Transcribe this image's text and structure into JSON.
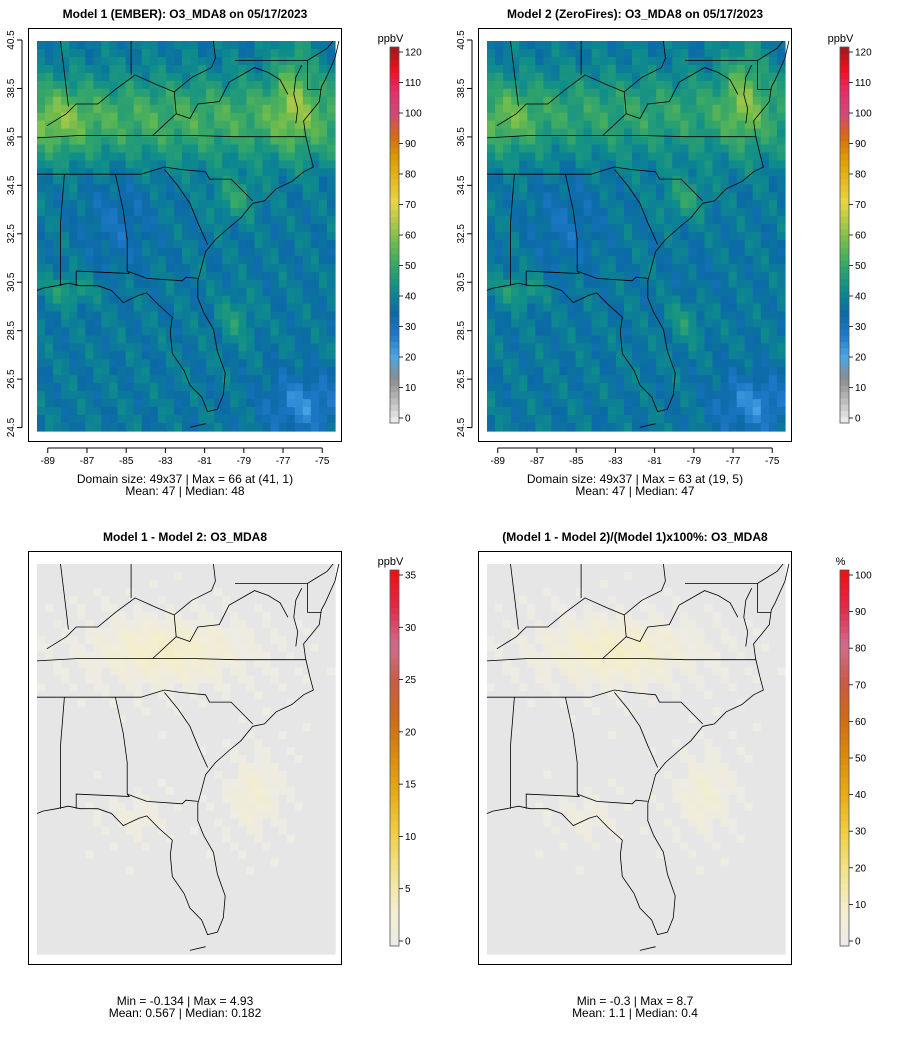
{
  "panels": [
    {
      "id": "p1",
      "title": "Model 1 (EMBER): O3_MDA8 on 05/17/2023",
      "stats_line1": "Domain size: 49x37 | Max = 66 at (41, 1)",
      "stats_line2": "Mean: 47 |  Median: 48",
      "x_ticks": [
        "-89",
        "-87",
        "-85",
        "-83",
        "-81",
        "-79",
        "-77",
        "-75"
      ],
      "y_ticks": [
        "24.5",
        "26.5",
        "28.5",
        "30.5",
        "32.5",
        "34.5",
        "36.5",
        "38.5",
        "40.5"
      ],
      "colorbar_unit": "ppbV",
      "colorbar_labels": [
        "0",
        "10",
        "20",
        "30",
        "40",
        "50",
        "60",
        "70",
        "80",
        "90",
        "100",
        "110",
        "120"
      ],
      "field": "ozone"
    },
    {
      "id": "p2",
      "title": "Model 2 (ZeroFires): O3_MDA8 on 05/17/2023",
      "stats_line1": "Domain size: 49x37 | Max = 63 at (19, 5)",
      "stats_line2": "Mean: 47 |  Median: 47",
      "x_ticks": [
        "-89",
        "-87",
        "-85",
        "-83",
        "-81",
        "-79",
        "-77",
        "-75"
      ],
      "y_ticks": [
        "24.5",
        "26.5",
        "28.5",
        "30.5",
        "32.5",
        "34.5",
        "36.5",
        "38.5",
        "40.5"
      ],
      "colorbar_unit": "ppbV",
      "colorbar_labels": [
        "0",
        "10",
        "20",
        "30",
        "40",
        "50",
        "60",
        "70",
        "80",
        "90",
        "100",
        "110",
        "120"
      ],
      "field": "ozone"
    },
    {
      "id": "p3",
      "title": "Model 1 - Model 2: O3_MDA8",
      "stats_line1": "Min = -0.134 | Max = 4.93",
      "stats_line2": "Mean: 0.567 |  Median: 0.182",
      "colorbar_unit": "ppbV",
      "colorbar_labels": [
        "0",
        "5",
        "10",
        "15",
        "20",
        "25",
        "30",
        "35"
      ],
      "field": "diff"
    },
    {
      "id": "p4",
      "title": "(Model 1 - Model 2)/(Model 1)x100%: O3_MDA8",
      "stats_line1": "Min = -0.3 | Max = 8.7",
      "stats_line2": "Mean: 1.1 |  Median: 0.4",
      "colorbar_unit": "%",
      "colorbar_labels": [
        "0",
        "10",
        "20",
        "30",
        "40",
        "50",
        "60",
        "70",
        "80",
        "90",
        "100"
      ],
      "field": "diff"
    }
  ],
  "colors": {
    "ozone_scale": [
      "#f2f2f2",
      "#bdbdbd",
      "#8c8c8c",
      "#4aa7e6",
      "#1f78c8",
      "#0b6aa6",
      "#0e8c8c",
      "#2ea36e",
      "#63b94f",
      "#a7c849",
      "#e8d642",
      "#e6b820",
      "#dc9b00",
      "#d66a12",
      "#d1487a",
      "#e52e6a",
      "#f00f1e",
      "#9e1a1a"
    ],
    "diff_scale": [
      "#ebebeb",
      "#f4eecb",
      "#f3e38c",
      "#f1cf44",
      "#e9ad18",
      "#dc8d0a",
      "#cf6d14",
      "#c95a43",
      "#cf6c8c",
      "#e22a4a",
      "#f00f0f"
    ],
    "land_lines": "#000000",
    "domain_grey": "#e6e6e6"
  }
}
